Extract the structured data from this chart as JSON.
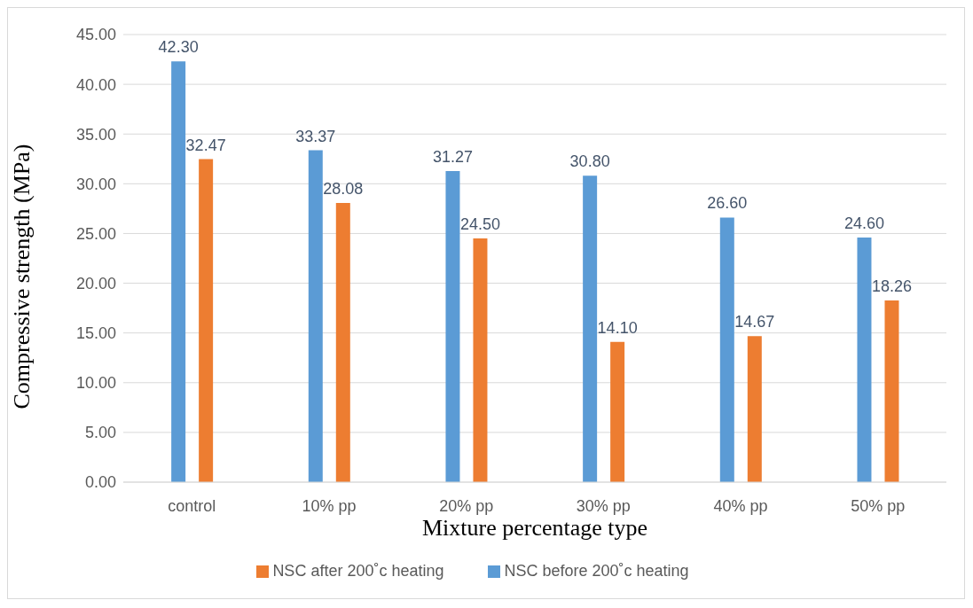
{
  "chart_data": {
    "type": "bar",
    "xlabel": "Mixture percentage type",
    "ylabel": "Compressive strength (MPa)",
    "categories": [
      "control",
      "10% pp",
      "20% pp",
      "30% pp",
      "40% pp",
      "50% pp"
    ],
    "series": [
      {
        "name": "NSC before 200˚c heating",
        "color": "#5b9bd5",
        "values": [
          42.3,
          33.37,
          31.27,
          30.8,
          26.6,
          24.6
        ],
        "value_labels": [
          "42.30",
          "33.37",
          "31.27",
          "30.80",
          "26.60",
          "24.60"
        ]
      },
      {
        "name": "NSC after 200˚c heating",
        "color": "#ed7d31",
        "values": [
          32.47,
          28.08,
          24.5,
          14.1,
          14.67,
          18.26
        ],
        "value_labels": [
          "32.47",
          "28.08",
          "24.50",
          "14.10",
          "14.67",
          "18.26"
        ]
      }
    ],
    "ylim": [
      0,
      45
    ],
    "yticks": [
      {
        "value": 0,
        "label": "0.00"
      },
      {
        "value": 5,
        "label": "5.00"
      },
      {
        "value": 10,
        "label": "10.00"
      },
      {
        "value": 15,
        "label": "15.00"
      },
      {
        "value": 20,
        "label": "20.00"
      },
      {
        "value": 25,
        "label": "25.00"
      },
      {
        "value": 30,
        "label": "30.00"
      },
      {
        "value": 35,
        "label": "35.00"
      },
      {
        "value": 40,
        "label": "40.00"
      },
      {
        "value": 45,
        "label": "45.00"
      }
    ],
    "grid": "y",
    "legend": "bottom"
  }
}
